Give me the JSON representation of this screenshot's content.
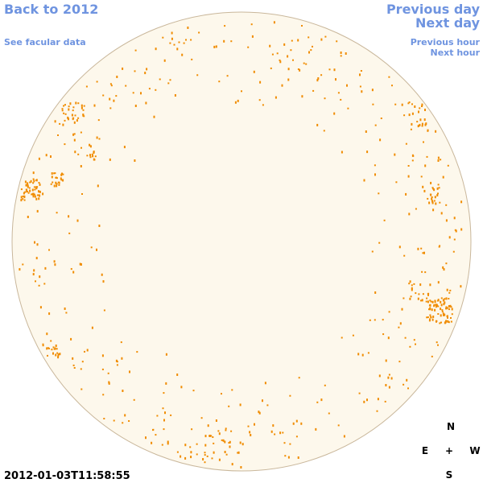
{
  "links": {
    "back": "Back to 2012",
    "facular": "See facular data",
    "previous_day": "Previous day",
    "next_day": "Next day",
    "previous_hour": "Previous hour",
    "next_hour": "Next hour"
  },
  "timestamp": "2012-01-03T11:58:55",
  "compass": {
    "north": "N",
    "east": "E",
    "center": "+",
    "west": "W",
    "south": "S"
  }
}
